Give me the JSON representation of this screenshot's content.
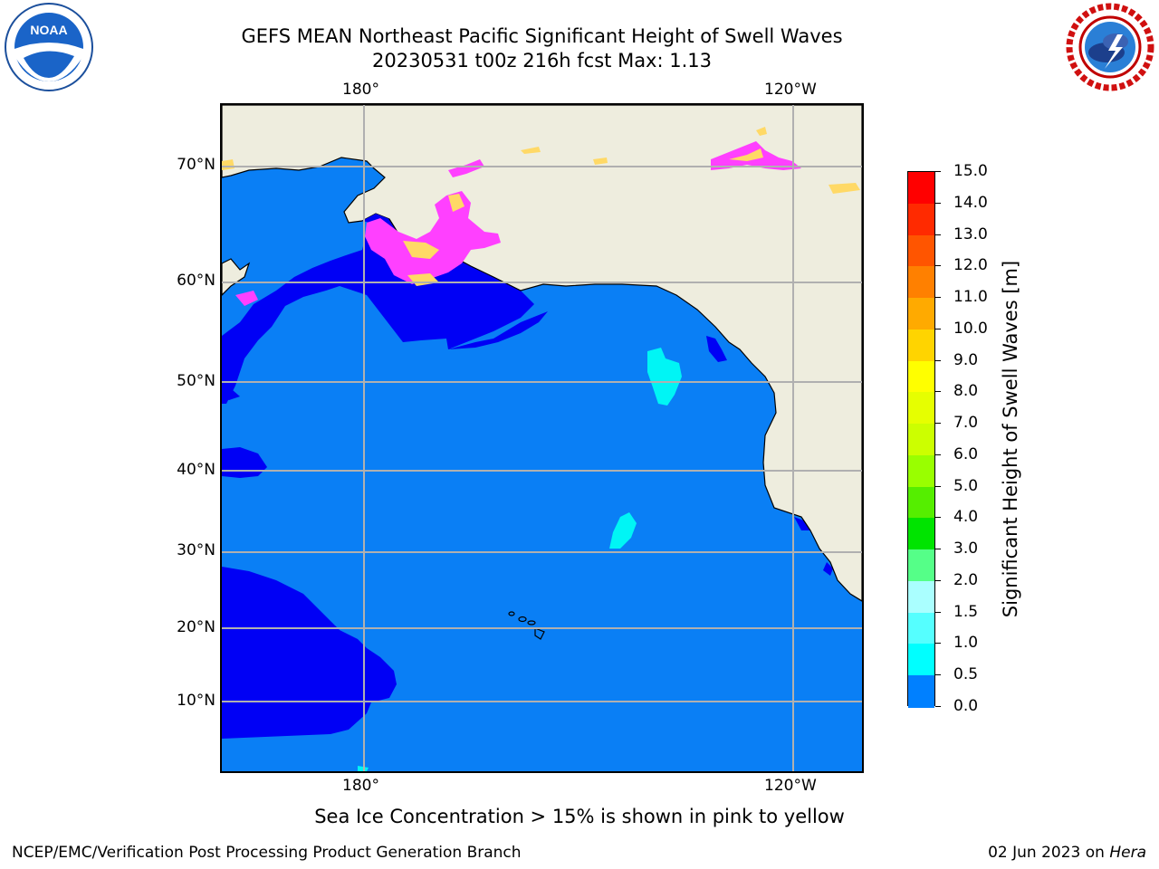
{
  "title": {
    "line1": "GEFS MEAN Northeast Pacific Significant Height of Swell Waves",
    "line2": "20230531 t00z 216h fcst   Max: 1.13"
  },
  "map": {
    "lon_ticks_top": [
      "180°",
      "120°W"
    ],
    "lon_ticks_bottom": [
      "180°",
      "120°W"
    ],
    "lat_ticks": [
      "70°N",
      "60°N",
      "50°N",
      "40°N",
      "30°N",
      "20°N",
      "10°N"
    ],
    "colors": {
      "ocean": "#0a7ff5",
      "ocean_low": "#0000f5",
      "swell_mid": "#00f5f5",
      "land": "#eeedde",
      "ice_pink": "#ff40ff",
      "ice_yellow": "#ffd966",
      "grid": "#b0b0b0"
    }
  },
  "colorbar": {
    "labels": [
      "15.0",
      "14.0",
      "13.0",
      "12.0",
      "11.0",
      "10.0",
      "9.0",
      "8.0",
      "7.0",
      "6.0",
      "5.0",
      "4.0",
      "3.0",
      "2.0",
      "1.5",
      "1.0",
      "0.5",
      "0.0"
    ],
    "colors": [
      "#ff0000",
      "#ff2a00",
      "#ff5500",
      "#ff8000",
      "#ffaa00",
      "#ffd400",
      "#ffff00",
      "#e6ff00",
      "#ccff00",
      "#99ff00",
      "#55ee00",
      "#00e400",
      "#55ff88",
      "#aaffff",
      "#55ffff",
      "#00ffff",
      "#0080ff",
      "#0000ff"
    ],
    "title": "Significant Height of Swell Waves [m]"
  },
  "footer": {
    "note": "Sea Ice Concentration > 15% is shown in pink to yellow",
    "left": "NCEP/EMC/Verification Post Processing Product Generation Branch",
    "right_date": "02 Jun 2023 on ",
    "right_machine": "Hera"
  }
}
